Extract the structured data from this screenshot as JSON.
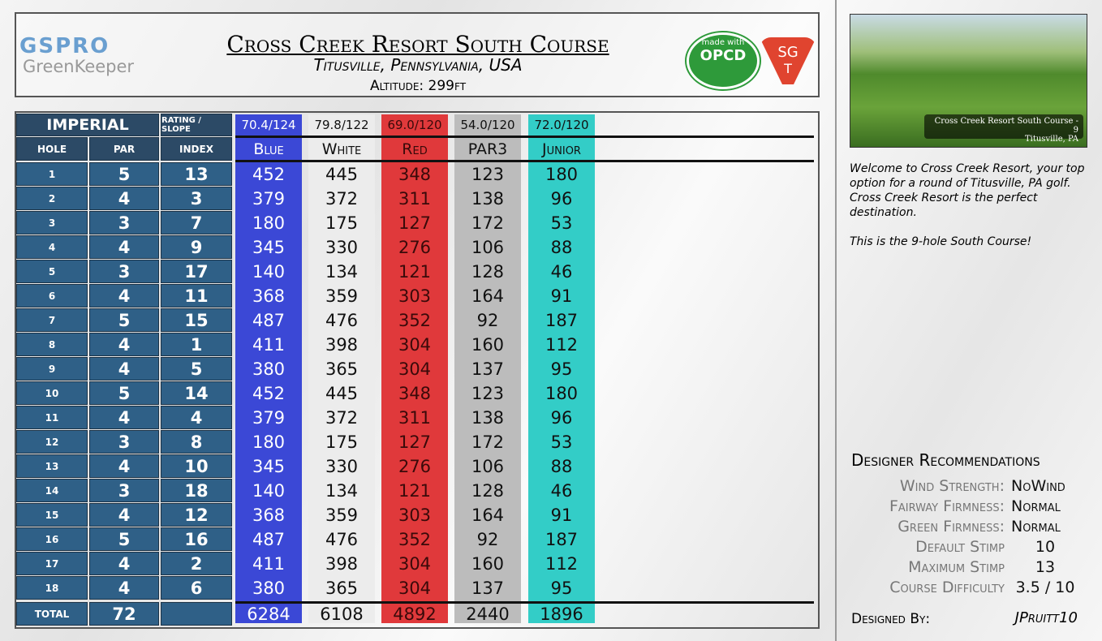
{
  "logo": {
    "brand": "GSPRO",
    "product": "GreenKeeper"
  },
  "header": {
    "title": "Cross Creek Resort South Course",
    "location": "Titusville, Pennsylvania, USA",
    "altitude": "Altitude: 299ft"
  },
  "badges": {
    "made_with": "made with",
    "opcd": "OPCD",
    "sg": "SG",
    "t": "T"
  },
  "table": {
    "unit": "IMPERIAL",
    "rating_label": "RATING / SLOPE",
    "columns": [
      "HOLE",
      "PAR",
      "INDEX"
    ],
    "tees": [
      {
        "name": "Blue",
        "rating": "70.4/124"
      },
      {
        "name": "White",
        "rating": "79.8/122"
      },
      {
        "name": "Red",
        "rating": "69.0/120"
      },
      {
        "name": "PAR3",
        "rating": "54.0/120"
      },
      {
        "name": "Junior",
        "rating": "72.0/120"
      }
    ],
    "rows": [
      [
        1,
        5,
        13,
        452,
        445,
        348,
        123,
        180
      ],
      [
        2,
        4,
        3,
        379,
        372,
        311,
        138,
        96
      ],
      [
        3,
        3,
        7,
        180,
        175,
        127,
        172,
        53
      ],
      [
        4,
        4,
        9,
        345,
        330,
        276,
        106,
        88
      ],
      [
        5,
        3,
        17,
        140,
        134,
        121,
        128,
        46
      ],
      [
        6,
        4,
        11,
        368,
        359,
        303,
        164,
        91
      ],
      [
        7,
        5,
        15,
        487,
        476,
        352,
        92,
        187
      ],
      [
        8,
        4,
        1,
        411,
        398,
        304,
        160,
        112
      ],
      [
        9,
        4,
        5,
        380,
        365,
        304,
        137,
        95
      ],
      [
        10,
        5,
        14,
        452,
        445,
        348,
        123,
        180
      ],
      [
        11,
        4,
        4,
        379,
        372,
        311,
        138,
        96
      ],
      [
        12,
        3,
        8,
        180,
        175,
        127,
        172,
        53
      ],
      [
        13,
        4,
        10,
        345,
        330,
        276,
        106,
        88
      ],
      [
        14,
        3,
        18,
        140,
        134,
        121,
        128,
        46
      ],
      [
        15,
        4,
        12,
        368,
        359,
        303,
        164,
        91
      ],
      [
        16,
        5,
        16,
        487,
        476,
        352,
        92,
        187
      ],
      [
        17,
        4,
        2,
        411,
        398,
        304,
        160,
        112
      ],
      [
        18,
        4,
        6,
        380,
        365,
        304,
        137,
        95
      ]
    ],
    "total": {
      "label": "TOTAL",
      "par": 72,
      "yardages": [
        6284,
        6108,
        4892,
        2440,
        1896
      ]
    }
  },
  "preview": {
    "caption": "Cross Creek Resort South Course - 9",
    "location": "Titusville, PA"
  },
  "description": [
    "Welcome to Cross Creek Resort, your top option for a round of Titusville, PA golf. Cross Creek Resort is the perfect destination.",
    "This is the 9-hole South Course!"
  ],
  "recommendations": {
    "title": "Designer Recommendations",
    "items": [
      {
        "label": "Wind Strength:",
        "value": "NoWind"
      },
      {
        "label": "Fairway Firmness:",
        "value": "Normal"
      },
      {
        "label": "Green Firmness:",
        "value": "Normal"
      },
      {
        "label": "Default Stimp",
        "value": "10"
      },
      {
        "label": "Maximum Stimp",
        "value": "13"
      },
      {
        "label": "Course Difficulty",
        "value": "3.5 / 10"
      }
    ]
  },
  "designer": {
    "label": "Designed By:",
    "name": "JPruitt10"
  }
}
